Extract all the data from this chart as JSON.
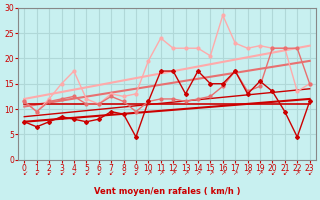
{
  "bg_color": "#c8f0f0",
  "grid_color": "#b0d8d8",
  "xlabel": "Vent moyen/en rafales ( km/h )",
  "xlabel_color": "#cc0000",
  "tick_color": "#cc0000",
  "axis_color": "#888888",
  "xlim": [
    -0.5,
    23.5
  ],
  "ylim": [
    0,
    30
  ],
  "yticks": [
    0,
    5,
    10,
    15,
    20,
    25,
    30
  ],
  "xticks": [
    0,
    1,
    2,
    3,
    4,
    5,
    6,
    7,
    8,
    9,
    10,
    11,
    12,
    13,
    14,
    15,
    16,
    17,
    18,
    19,
    20,
    21,
    22,
    23
  ],
  "series": [
    {
      "note": "dark red jagged line with diamond markers - main series",
      "x": [
        0,
        1,
        2,
        3,
        4,
        5,
        6,
        7,
        8,
        9,
        10,
        11,
        12,
        13,
        14,
        15,
        16,
        17,
        18,
        19,
        20,
        21,
        22,
        23
      ],
      "y": [
        7.5,
        6.5,
        7.5,
        8.5,
        8.0,
        7.5,
        8.0,
        9.5,
        9.0,
        4.5,
        11.5,
        17.5,
        17.5,
        13.0,
        17.5,
        15.0,
        15.0,
        17.5,
        13.0,
        15.5,
        13.5,
        9.5,
        4.5,
        11.5
      ],
      "color": "#cc0000",
      "lw": 1.0,
      "marker": "D",
      "ms": 2.0,
      "zorder": 5
    },
    {
      "note": "medium pink with circle markers - middle series",
      "x": [
        0,
        1,
        2,
        3,
        4,
        5,
        6,
        7,
        8,
        9,
        10,
        11,
        12,
        13,
        14,
        15,
        16,
        17,
        18,
        19,
        20,
        21,
        22,
        23
      ],
      "y": [
        11.5,
        9.5,
        11.5,
        12.0,
        12.5,
        11.0,
        11.0,
        12.5,
        11.5,
        9.5,
        11.5,
        12.0,
        12.0,
        11.5,
        12.0,
        12.5,
        14.5,
        17.5,
        13.5,
        14.5,
        22.0,
        22.0,
        22.0,
        15.0
      ],
      "color": "#e87070",
      "lw": 1.0,
      "marker": "o",
      "ms": 2.0,
      "zorder": 4
    },
    {
      "note": "light pink irregular line - top series (rafales)",
      "x": [
        0,
        1,
        2,
        3,
        4,
        5,
        6,
        7,
        8,
        9,
        10,
        11,
        12,
        13,
        14,
        15,
        16,
        17,
        18,
        19,
        20,
        21,
        22,
        23
      ],
      "y": [
        11.5,
        9.5,
        12.0,
        15.0,
        17.5,
        12.0,
        11.0,
        13.0,
        12.5,
        13.0,
        19.5,
        24.0,
        22.0,
        22.0,
        22.0,
        20.5,
        28.5,
        23.0,
        22.0,
        22.5,
        22.0,
        22.0,
        13.5,
        15.0
      ],
      "color": "#ffaaaa",
      "lw": 1.0,
      "marker": "o",
      "ms": 2.0,
      "zorder": 3
    },
    {
      "note": "dark red regression line bottom",
      "x": [
        0,
        23
      ],
      "y": [
        7.5,
        12.0
      ],
      "color": "#cc0000",
      "lw": 1.5,
      "marker": null,
      "ms": 0,
      "zorder": 2
    },
    {
      "note": "dark red regression line 2",
      "x": [
        0,
        23
      ],
      "y": [
        8.5,
        14.0
      ],
      "color": "#cc0000",
      "lw": 1.0,
      "marker": null,
      "ms": 0,
      "zorder": 2
    },
    {
      "note": "medium pink regression line",
      "x": [
        0,
        23
      ],
      "y": [
        10.5,
        19.5
      ],
      "color": "#e87070",
      "lw": 1.5,
      "marker": null,
      "ms": 0,
      "zorder": 2
    },
    {
      "note": "light pink regression line top",
      "x": [
        0,
        23
      ],
      "y": [
        12.0,
        22.5
      ],
      "color": "#ffaaaa",
      "lw": 1.5,
      "marker": null,
      "ms": 0,
      "zorder": 2
    },
    {
      "note": "horizontal dark red line at ~11",
      "x": [
        0,
        23
      ],
      "y": [
        11.0,
        11.0
      ],
      "color": "#cc0000",
      "lw": 1.2,
      "marker": null,
      "ms": 0,
      "zorder": 2
    }
  ],
  "wind_arrows": {
    "x": [
      0,
      1,
      2,
      3,
      4,
      5,
      6,
      7,
      8,
      9,
      10,
      11,
      12,
      13,
      14,
      15,
      16,
      17,
      18,
      19,
      20,
      21,
      22,
      23
    ],
    "directions": [
      "sw",
      "sw",
      "sw",
      "sw",
      "sw",
      "sw",
      "sw",
      "sw",
      "sw",
      "sw",
      "ne",
      "ne",
      "ne",
      "ne",
      "ne",
      "ne",
      "ne",
      "ne",
      "ne",
      "ne",
      "sw",
      "sw",
      "ne",
      "sw"
    ]
  }
}
